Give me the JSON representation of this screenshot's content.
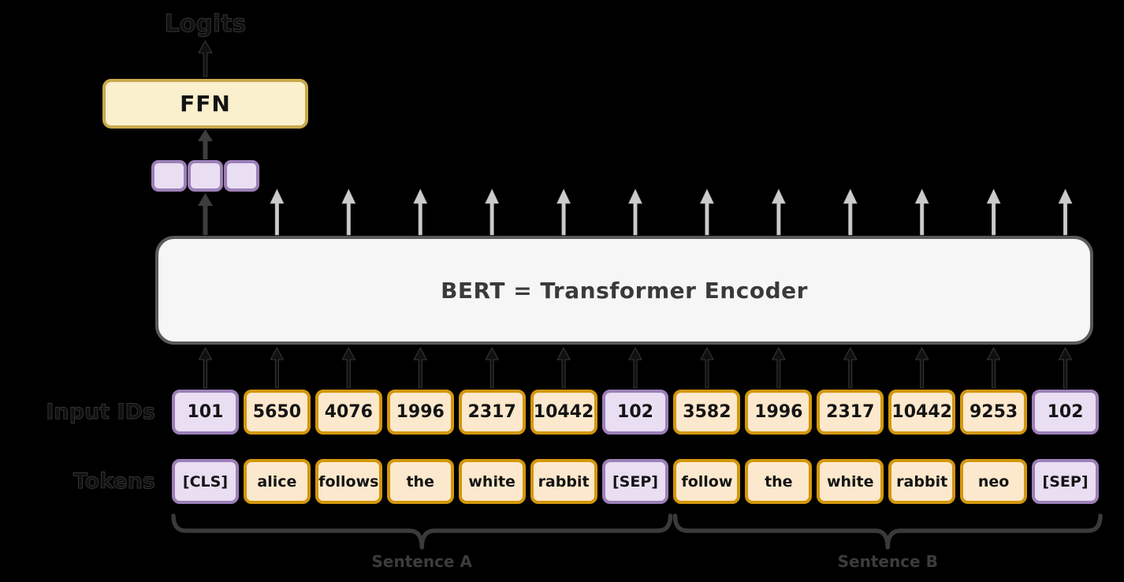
{
  "diagram": {
    "logits_label": "Logits",
    "ffn_label": "FFN",
    "bert_title": "BERT = Transformer Encoder",
    "input_ids_label": "Input IDs",
    "tokens_label": "Tokens",
    "num_embedding_cells": 3,
    "columns": [
      {
        "id": "101",
        "token": "[CLS]",
        "type": "special"
      },
      {
        "id": "5650",
        "token": "alice",
        "type": "normal"
      },
      {
        "id": "4076",
        "token": "follows",
        "type": "normal"
      },
      {
        "id": "1996",
        "token": "the",
        "type": "normal"
      },
      {
        "id": "2317",
        "token": "white",
        "type": "normal"
      },
      {
        "id": "10442",
        "token": "rabbit",
        "type": "normal"
      },
      {
        "id": "102",
        "token": "[SEP]",
        "type": "special"
      },
      {
        "id": "3582",
        "token": "follow",
        "type": "normal"
      },
      {
        "id": "1996",
        "token": "the",
        "type": "normal"
      },
      {
        "id": "2317",
        "token": "white",
        "type": "normal"
      },
      {
        "id": "10442",
        "token": "rabbit",
        "type": "normal"
      },
      {
        "id": "9253",
        "token": "neo",
        "type": "normal"
      },
      {
        "id": "102",
        "token": "[SEP]",
        "type": "special"
      }
    ],
    "groups": [
      {
        "label": "Sentence A",
        "start": 0,
        "end": 6
      },
      {
        "label": "Sentence B",
        "start": 7,
        "end": 12
      }
    ]
  },
  "colors": {
    "special_fill": "#E9DEF2",
    "special_border": "#9C7FB8",
    "normal_fill": "#FCE8CC",
    "normal_border": "#D3970E",
    "ffn_fill": "#FAF0CE",
    "ffn_border": "#C9A94C",
    "bert_fill": "#F6F6F6",
    "bert_border": "#595959",
    "light_arrow": "#CBCBCB",
    "dark_arrow": "#3D3D3D",
    "black_arrow": "#101010",
    "brace": "#3A3A3A",
    "sentence_label": "#3C3C3C",
    "hidden_label": "#111111"
  }
}
